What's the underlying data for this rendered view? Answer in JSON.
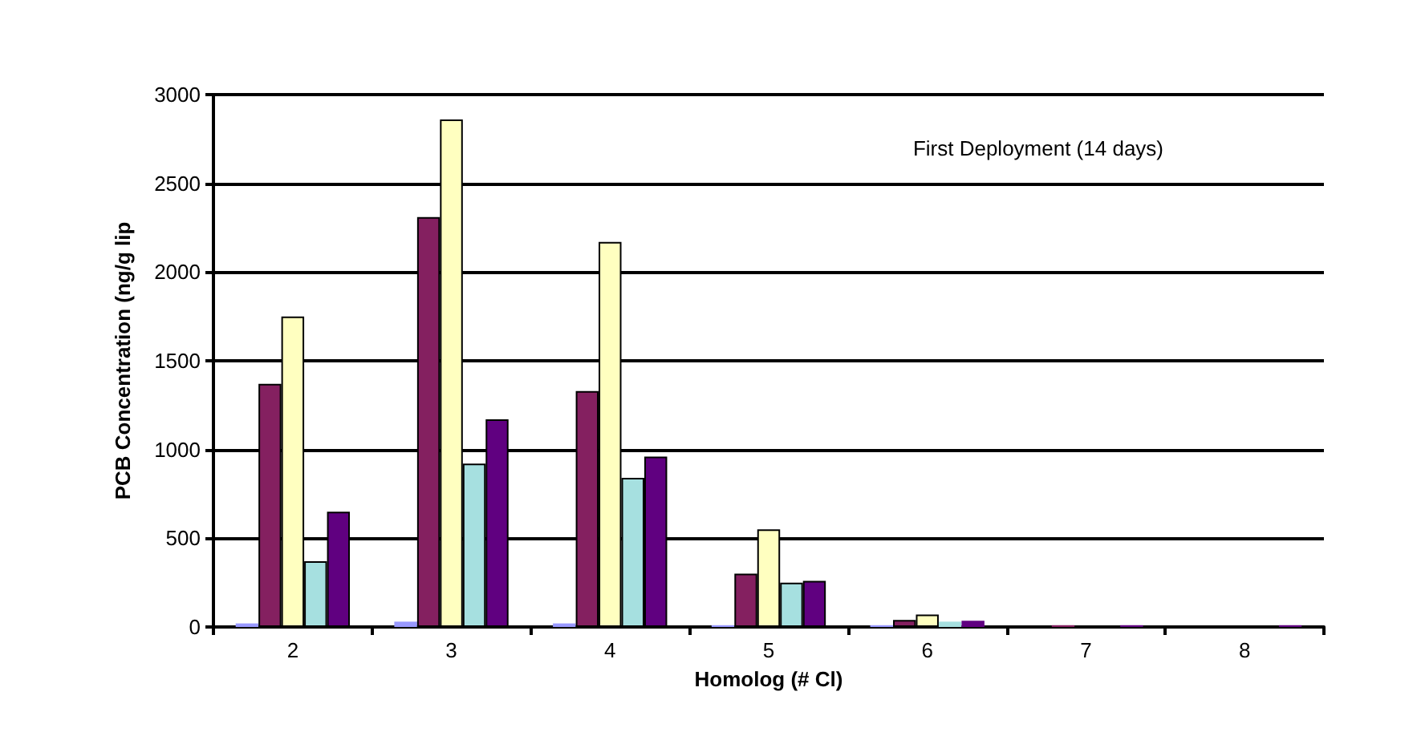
{
  "chart_data": {
    "type": "bar",
    "xlabel": "Homolog (# Cl)",
    "ylabel": "PCB Concentration (ng/g lip",
    "annotations": [
      "First Deployment (14 days)"
    ],
    "categories": [
      "2",
      "3",
      "4",
      "5",
      "6",
      "7",
      "8"
    ],
    "series": [
      {
        "color": "#9999ff",
        "values": [
          20,
          30,
          20,
          10,
          10,
          0,
          0
        ]
      },
      {
        "color": "#842060",
        "values": [
          1370,
          2310,
          1330,
          300,
          40,
          10,
          0
        ]
      },
      {
        "color": "#ffffc0",
        "values": [
          1750,
          2860,
          2170,
          550,
          70,
          null,
          0
        ]
      },
      {
        "color": "#a6e0e0",
        "values": [
          370,
          920,
          840,
          250,
          30,
          null,
          0
        ]
      },
      {
        "color": "#600080",
        "values": [
          650,
          1170,
          960,
          260,
          35,
          10,
          10
        ]
      }
    ],
    "ylim": [
      0,
      3000
    ],
    "yticks": [
      0,
      500,
      1000,
      1500,
      2000,
      2500,
      3000
    ],
    "grid": "y"
  }
}
